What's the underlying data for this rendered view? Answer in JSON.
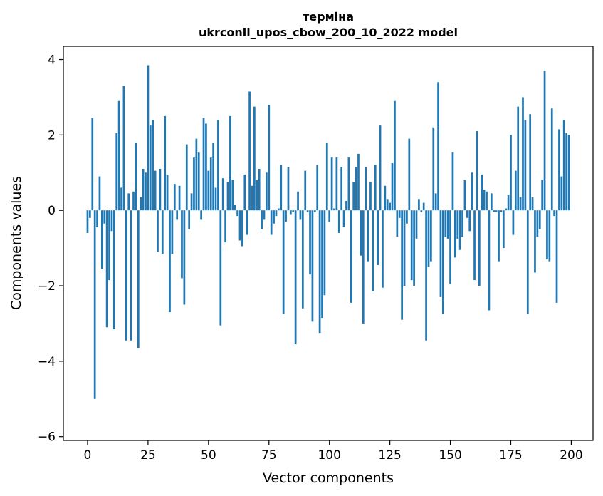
{
  "chart_data": {
    "type": "bar",
    "title_line1": "терміна",
    "title_line2": "ukrconll_upos_cbow_200_10_2022 model",
    "xlabel": "Vector components",
    "ylabel": "Components values",
    "xlim": [
      -10,
      209
    ],
    "ylim": [
      -6.1,
      4.35
    ],
    "xticks": [
      0,
      25,
      50,
      75,
      100,
      125,
      150,
      175,
      200
    ],
    "xtick_labels": [
      "0",
      "25",
      "50",
      "75",
      "100",
      "125",
      "150",
      "175",
      "200"
    ],
    "yticks": [
      -6,
      -4,
      -2,
      0,
      2,
      4
    ],
    "ytick_labels": [
      "−6",
      "−4",
      "−2",
      "0",
      "2",
      "4"
    ],
    "bar_color": "#1f77b4",
    "grid": false,
    "values": [
      -0.6,
      -0.2,
      2.45,
      -5.0,
      -0.45,
      0.9,
      -1.55,
      -0.35,
      -3.1,
      -1.85,
      -0.55,
      -3.15,
      2.05,
      2.9,
      0.6,
      3.3,
      -3.45,
      0.45,
      -3.45,
      0.5,
      1.8,
      -3.65,
      0.35,
      1.1,
      1.0,
      3.85,
      2.25,
      2.4,
      1.05,
      -1.1,
      1.1,
      -1.15,
      2.5,
      0.95,
      -2.7,
      -1.15,
      0.7,
      -0.25,
      0.65,
      -1.8,
      -2.5,
      1.75,
      -0.5,
      0.45,
      1.4,
      1.9,
      1.55,
      -0.25,
      2.45,
      2.3,
      1.05,
      1.4,
      1.8,
      0.6,
      2.4,
      -3.05,
      0.85,
      -0.85,
      0.75,
      2.5,
      0.8,
      0.15,
      -0.15,
      -0.8,
      -0.95,
      0.95,
      -0.65,
      3.15,
      0.65,
      2.75,
      0.8,
      1.1,
      -0.5,
      -0.25,
      1.0,
      2.8,
      -0.65,
      -0.35,
      -0.15,
      0.05,
      1.2,
      -2.75,
      -0.3,
      1.15,
      -0.1,
      -0.05,
      -3.55,
      0.5,
      -0.25,
      -2.6,
      1.05,
      -0.05,
      -1.7,
      -2.95,
      -0.05,
      1.2,
      -3.25,
      -2.85,
      -2.25,
      1.8,
      -0.3,
      1.4,
      0.05,
      1.4,
      -0.6,
      1.15,
      -0.45,
      0.25,
      1.4,
      -2.45,
      0.75,
      1.15,
      1.5,
      -1.2,
      -3.0,
      1.15,
      -1.35,
      0.75,
      -2.15,
      1.2,
      -1.45,
      2.25,
      -2.05,
      0.65,
      0.3,
      0.2,
      1.25,
      2.9,
      -0.7,
      -0.2,
      -2.9,
      -2.0,
      -0.35,
      1.9,
      -1.85,
      -2.0,
      -0.75,
      0.3,
      -0.05,
      0.2,
      -3.45,
      -1.5,
      -1.35,
      2.2,
      0.45,
      3.4,
      -2.3,
      -2.75,
      -0.7,
      -0.75,
      -1.95,
      1.55,
      -1.25,
      -0.75,
      -1.05,
      -0.7,
      0.8,
      -0.2,
      -0.55,
      1.0,
      -1.85,
      2.1,
      -2.0,
      0.95,
      0.55,
      0.5,
      -2.65,
      0.45,
      -0.05,
      -0.05,
      -1.35,
      -0.05,
      -1.0,
      0.05,
      0.4,
      2.0,
      -0.65,
      1.05,
      2.75,
      0.35,
      3.0,
      2.4,
      -2.75,
      2.55,
      0.35,
      -1.65,
      -0.7,
      -0.5,
      0.8,
      3.7,
      -1.3,
      -1.35,
      2.7,
      -0.15,
      -2.45,
      2.15,
      0.9,
      2.4,
      2.05,
      2.0
    ]
  }
}
